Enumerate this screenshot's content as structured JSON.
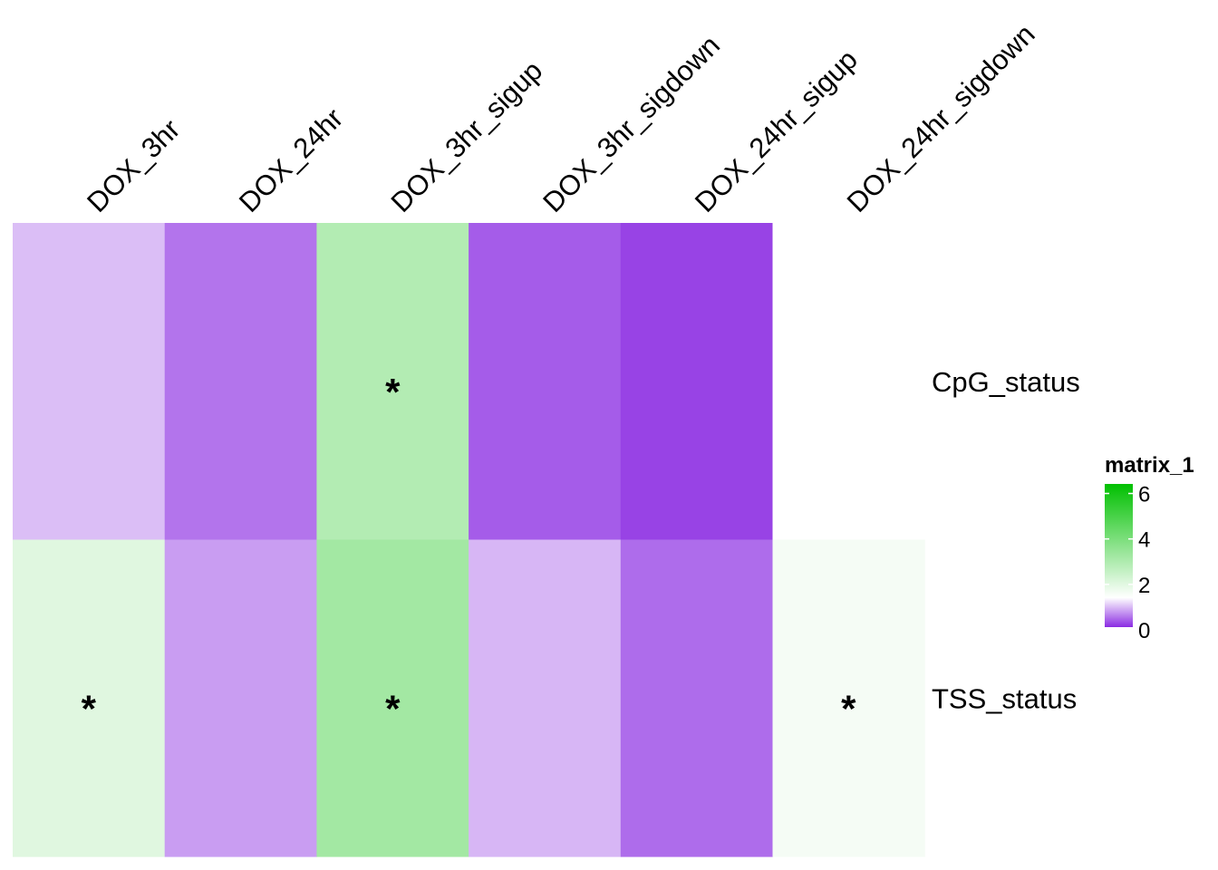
{
  "chart_data": {
    "type": "heatmap",
    "columns": [
      "DOX_3hr",
      "DOX_24hr",
      "DOX_3hr_sigup",
      "DOX_3hr_sigdown",
      "DOX_24hr_sigup",
      "DOX_24hr_sigdown"
    ],
    "rows": [
      "CpG_status",
      "TSS_status"
    ],
    "values": [
      [
        0.9,
        0.45,
        2.8,
        0.3,
        0.15,
        null
      ],
      [
        1.9,
        0.7,
        3.1,
        0.85,
        0.4,
        1.5
      ]
    ],
    "significant": [
      [
        false,
        false,
        true,
        false,
        false,
        false
      ],
      [
        true,
        false,
        true,
        false,
        false,
        true
      ]
    ],
    "significance_marker": "*",
    "legend": {
      "title": "matrix_1",
      "ticks": [
        0,
        2,
        4,
        6
      ],
      "range": [
        0,
        6.3
      ],
      "colors": {
        "low": "#8a2be2",
        "mid": "#ffffff",
        "high": "#00c000",
        "na": "#ffffff"
      }
    }
  }
}
